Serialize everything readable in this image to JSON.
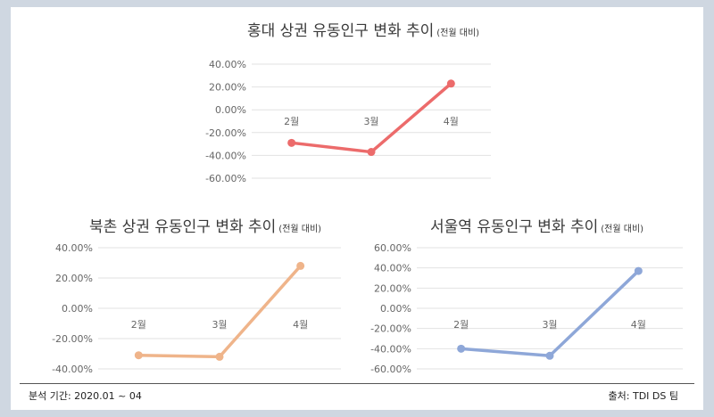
{
  "chart_data": [
    {
      "type": "line",
      "title": "홍대 상권 유동인구 변화 추이",
      "subtitle": "(전월 대비)",
      "categories": [
        "2월",
        "3월",
        "4월"
      ],
      "values": [
        -0.29,
        -0.37,
        0.23
      ],
      "ylim": [
        -0.6,
        0.4
      ],
      "yticks": [
        0.4,
        0.2,
        0.0,
        -0.2,
        -0.4,
        -0.6
      ],
      "color": "#ec6b6b",
      "grid": true
    },
    {
      "type": "line",
      "title": "북촌 상권 유동인구 변화 추이",
      "subtitle": "(전월 대비)",
      "categories": [
        "2월",
        "3월",
        "4월"
      ],
      "values": [
        -0.31,
        -0.32,
        0.28
      ],
      "ylim": [
        -0.4,
        0.4
      ],
      "yticks": [
        0.4,
        0.2,
        0.0,
        -0.2,
        -0.4
      ],
      "color": "#efb48a",
      "grid": true
    },
    {
      "type": "line",
      "title": "서울역 유동인구 변화 추이",
      "subtitle": "(전월 대비)",
      "categories": [
        "2월",
        "3월",
        "4월"
      ],
      "values": [
        -0.4,
        -0.47,
        0.37
      ],
      "ylim": [
        -0.6,
        0.6
      ],
      "yticks": [
        0.6,
        0.4,
        0.2,
        0.0,
        -0.2,
        -0.4,
        -0.6
      ],
      "color": "#8ea7d8",
      "grid": true
    }
  ],
  "footer": {
    "left": "분석 기간: 2020.01 ~ 04",
    "right": "출처: TDI DS 팀"
  }
}
